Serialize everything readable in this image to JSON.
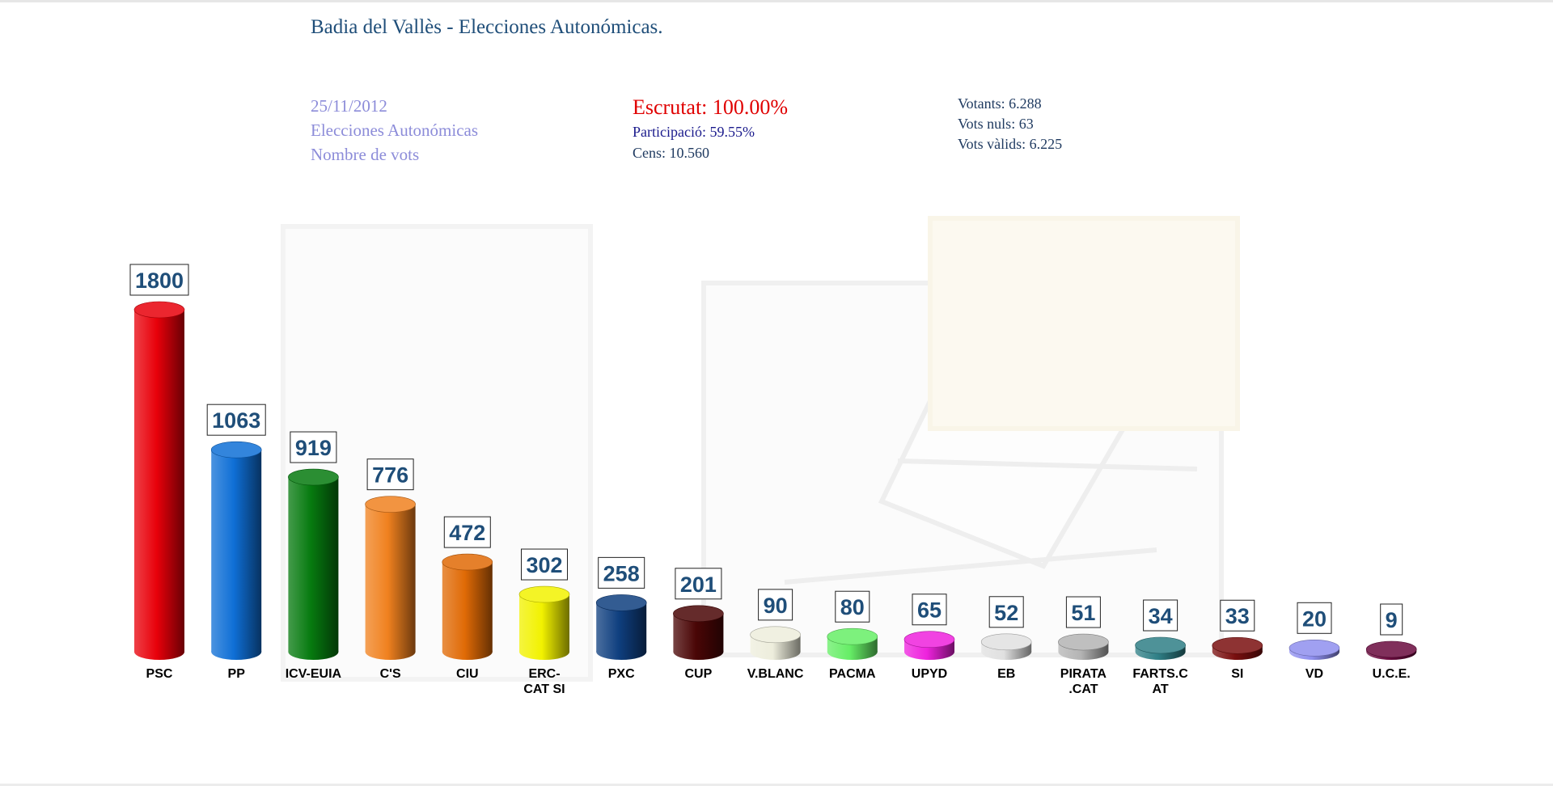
{
  "header": {
    "title": "Badia del Vallès - Elecciones Autonómicas.",
    "date": "25/11/2012",
    "election": "Elecciones Autonómicas",
    "metric": "Nombre de vots",
    "scrutat": "Escrutat: 100.00%",
    "participacio": "Participació: 59.55%",
    "cens": "Cens: 10.560",
    "votants": "Votants: 6.288",
    "vots_nuls": "Vots nuls: 63",
    "vots_valids": "Vots vàlids: 6.225"
  },
  "chart_data": {
    "type": "bar",
    "title": "",
    "xlabel": "",
    "ylabel": "",
    "ylim": [
      0,
      1800
    ],
    "categories": [
      [
        "PSC"
      ],
      [
        "PP"
      ],
      [
        "ICV-EUIA"
      ],
      [
        "C'S"
      ],
      [
        "CIU"
      ],
      [
        "ERC-",
        "CAT SI"
      ],
      [
        "PXC"
      ],
      [
        "CUP"
      ],
      [
        "V.BLANC"
      ],
      [
        "PACMA"
      ],
      [
        "UPYD"
      ],
      [
        "EB"
      ],
      [
        "PIRATA",
        ".CAT"
      ],
      [
        "FARTS.C",
        "AT"
      ],
      [
        "SI"
      ],
      [
        "VD"
      ],
      [
        "U.C.E."
      ]
    ],
    "values": [
      1800,
      1063,
      919,
      776,
      472,
      302,
      258,
      201,
      90,
      80,
      65,
      52,
      51,
      34,
      33,
      20,
      9
    ],
    "colors": [
      "#e8000a",
      "#0f6fd6",
      "#067a0f",
      "#f0811f",
      "#e06a06",
      "#f2f200",
      "#0f3f7f",
      "#4a0606",
      "#ededdc",
      "#66ee66",
      "#ee22dd",
      "#e0e0e0",
      "#b4b4b4",
      "#2f7f86",
      "#7a0f0f",
      "#8f8fef",
      "#6a0a3e"
    ],
    "data_labels": true,
    "grid": false,
    "legend": "none"
  }
}
